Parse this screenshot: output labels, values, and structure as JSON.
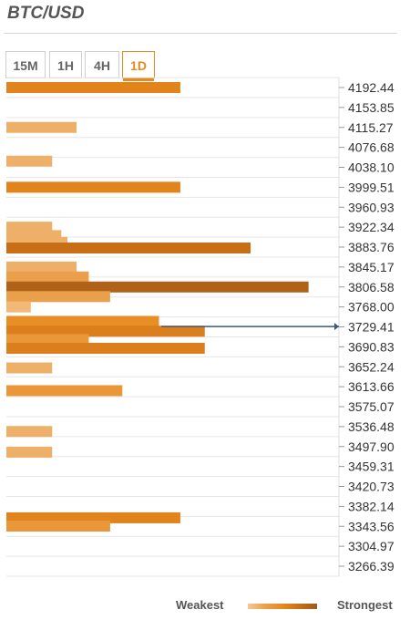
{
  "header": {
    "title": "BTC/USD"
  },
  "timeframe_tabs": [
    {
      "label": "15M",
      "active": false
    },
    {
      "label": "1H",
      "active": false
    },
    {
      "label": "4H",
      "active": false
    },
    {
      "label": "1D",
      "active": true
    }
  ],
  "legend": {
    "weakest_label": "Weakest",
    "strongest_label": "Strongest"
  },
  "colors": {
    "accent": "#e8891d",
    "weakest": "#f5c897",
    "strongest": "#9e5a18",
    "current_price_line": "#3b5a7a"
  },
  "chart_data": {
    "type": "bar",
    "orientation": "horizontal",
    "y_tick_labels": [
      "4192.44",
      "4153.85",
      "4115.27",
      "4076.68",
      "4038.10",
      "3999.51",
      "3960.93",
      "3922.34",
      "3883.76",
      "3845.17",
      "3806.58",
      "3768.00",
      "3729.41",
      "3690.83",
      "3652.24",
      "3613.66",
      "3575.07",
      "3536.48",
      "3497.90",
      "3459.31",
      "3420.73",
      "3382.14",
      "3343.56",
      "3304.97",
      "3266.39"
    ],
    "ylim": [
      3258,
      4200
    ],
    "current_price": 3730,
    "strength_scale": "weakest to strongest (0-1)",
    "bars": [
      {
        "price": 4192.44,
        "value": 0.57,
        "strength": 0.55
      },
      {
        "price": 4115.27,
        "value": 0.23,
        "strength": 0.15
      },
      {
        "price": 4050.0,
        "value": 0.15,
        "strength": 0.15
      },
      {
        "price": 3999.51,
        "value": 0.57,
        "strength": 0.55
      },
      {
        "price": 3922.34,
        "value": 0.15,
        "strength": 0.15
      },
      {
        "price": 3906.0,
        "value": 0.18,
        "strength": 0.15
      },
      {
        "price": 3893.0,
        "value": 0.2,
        "strength": 0.15
      },
      {
        "price": 3882.0,
        "value": 0.8,
        "strength": 0.75
      },
      {
        "price": 3845.17,
        "value": 0.23,
        "strength": 0.15
      },
      {
        "price": 3826.0,
        "value": 0.27,
        "strength": 0.25
      },
      {
        "price": 3806.58,
        "value": 0.99,
        "strength": 0.9
      },
      {
        "price": 3788.0,
        "value": 0.34,
        "strength": 0.25
      },
      {
        "price": 3768.0,
        "value": 0.08,
        "strength": 0.1
      },
      {
        "price": 3740.0,
        "value": 0.5,
        "strength": 0.45
      },
      {
        "price": 3721.0,
        "value": 0.65,
        "strength": 0.6
      },
      {
        "price": 3705.0,
        "value": 0.27,
        "strength": 0.35
      },
      {
        "price": 3688.0,
        "value": 0.65,
        "strength": 0.6
      },
      {
        "price": 3650.0,
        "value": 0.15,
        "strength": 0.15
      },
      {
        "price": 3606.0,
        "value": 0.38,
        "strength": 0.35
      },
      {
        "price": 3527.0,
        "value": 0.15,
        "strength": 0.15
      },
      {
        "price": 3487.0,
        "value": 0.15,
        "strength": 0.15
      },
      {
        "price": 3360.0,
        "value": 0.57,
        "strength": 0.55
      },
      {
        "price": 3344.0,
        "value": 0.34,
        "strength": 0.35
      }
    ]
  }
}
